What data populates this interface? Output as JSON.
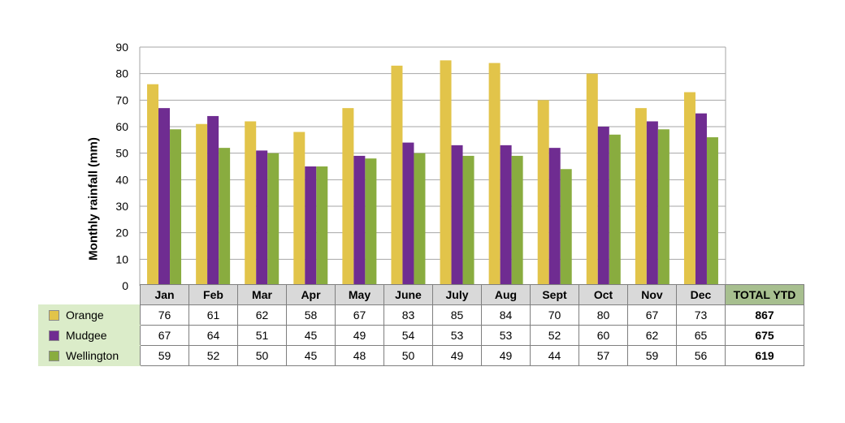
{
  "chart_data": {
    "type": "bar",
    "title": "",
    "ylabel": "Monthly rainfall (mm)",
    "xlabel": "",
    "ylim": [
      0,
      90
    ],
    "yticks": [
      "0",
      "10",
      "20",
      "30",
      "40",
      "50",
      "60",
      "70",
      "80",
      "90"
    ],
    "grid": true,
    "legend": "data-table",
    "categories": [
      "Jan",
      "Feb",
      "Mar",
      "Apr",
      "May",
      "June",
      "July",
      "Aug",
      "Sept",
      "Oct",
      "Nov",
      "Dec"
    ],
    "total_header": "TOTAL YTD",
    "series": [
      {
        "name": "Orange",
        "color": "#e2c44a",
        "values": [
          76,
          61,
          62,
          58,
          67,
          83,
          85,
          84,
          70,
          80,
          67,
          73
        ],
        "total": "867"
      },
      {
        "name": "Mudgee",
        "color": "#6f2c91",
        "values": [
          67,
          64,
          51,
          45,
          49,
          54,
          53,
          53,
          52,
          60,
          62,
          65
        ],
        "total": "675"
      },
      {
        "name": "Wellington",
        "color": "#89ac3f",
        "values": [
          59,
          52,
          50,
          45,
          48,
          50,
          49,
          49,
          44,
          57,
          59,
          56
        ],
        "total": "619"
      }
    ]
  },
  "colors": {
    "grid": "#a6a6a6",
    "header_bg": "#d9d9d9",
    "total_header_bg": "#a7bf8f",
    "legend_bg": "#dbecc9"
  }
}
